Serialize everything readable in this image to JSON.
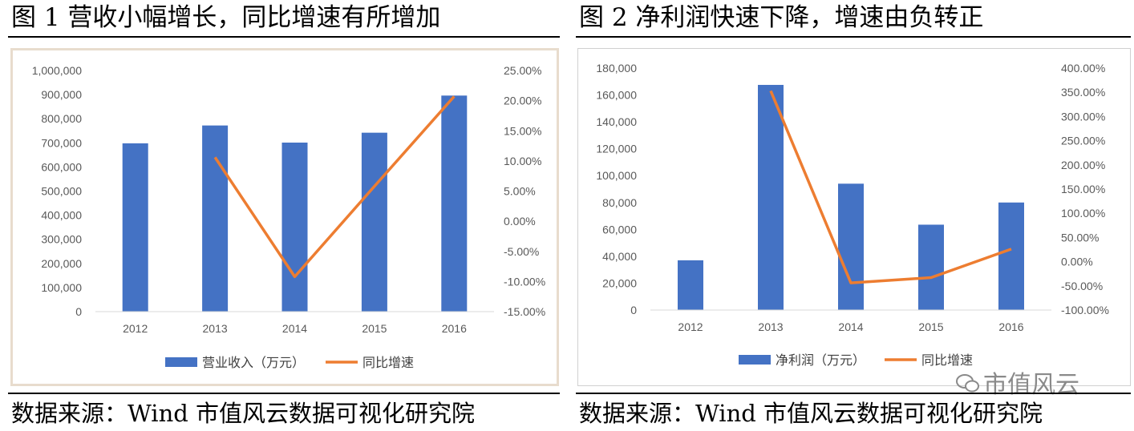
{
  "figures": [
    {
      "title": "图 1  营收小幅增长，同比增速有所增加",
      "source": "数据来源：Wind   市值风云数据可视化研究院"
    },
    {
      "title": "图 2  净利润快速下降，增速由负转正",
      "source": "数据来源：Wind   市值风云数据可视化研究院"
    }
  ],
  "watermark": "市值风云",
  "chart_data": [
    {
      "type": "bar",
      "categories": [
        "2012",
        "2013",
        "2014",
        "2015",
        "2016"
      ],
      "series": [
        {
          "name": "营业收入（万元）",
          "type": "bar",
          "axis": "left",
          "color": "#4472c4",
          "values": [
            698000,
            772000,
            701000,
            742000,
            896000
          ]
        },
        {
          "name": "同比增速",
          "type": "line",
          "axis": "right",
          "color": "#ed7d31",
          "values": [
            null,
            10.6,
            -9.2,
            5.8,
            20.7
          ]
        }
      ],
      "ylim": [
        0,
        1000000
      ],
      "yticks": [
        "1,000,000",
        "900,000",
        "800,000",
        "700,000",
        "600,000",
        "500,000",
        "400,000",
        "300,000",
        "200,000",
        "100,000",
        "0"
      ],
      "y2lim": [
        -15,
        25
      ],
      "y2ticks": [
        "25.00%",
        "20.00%",
        "15.00%",
        "10.00%",
        "5.00%",
        "0.00%",
        "-5.00%",
        "-10.00%",
        "-15.00%"
      ],
      "legend": "bottom",
      "grid": false
    },
    {
      "type": "bar",
      "categories": [
        "2012",
        "2013",
        "2014",
        "2015",
        "2016"
      ],
      "series": [
        {
          "name": "净利润（万元）",
          "type": "bar",
          "axis": "left",
          "color": "#4472c4",
          "values": [
            37000,
            167500,
            94000,
            63500,
            80000
          ]
        },
        {
          "name": "同比增速",
          "type": "line",
          "axis": "right",
          "color": "#ed7d31",
          "values": [
            null,
            353,
            -44,
            -33,
            26
          ]
        }
      ],
      "ylim": [
        0,
        180000
      ],
      "yticks": [
        "180,000",
        "160,000",
        "140,000",
        "120,000",
        "100,000",
        "80,000",
        "60,000",
        "40,000",
        "20,000",
        "0"
      ],
      "y2lim": [
        -100,
        400
      ],
      "y2ticks": [
        "400.00%",
        "350.00%",
        "300.00%",
        "250.00%",
        "200.00%",
        "150.00%",
        "100.00%",
        "50.00%",
        "0.00%",
        "-50.00%",
        "-100.00%"
      ],
      "legend": "bottom",
      "grid": false
    }
  ]
}
